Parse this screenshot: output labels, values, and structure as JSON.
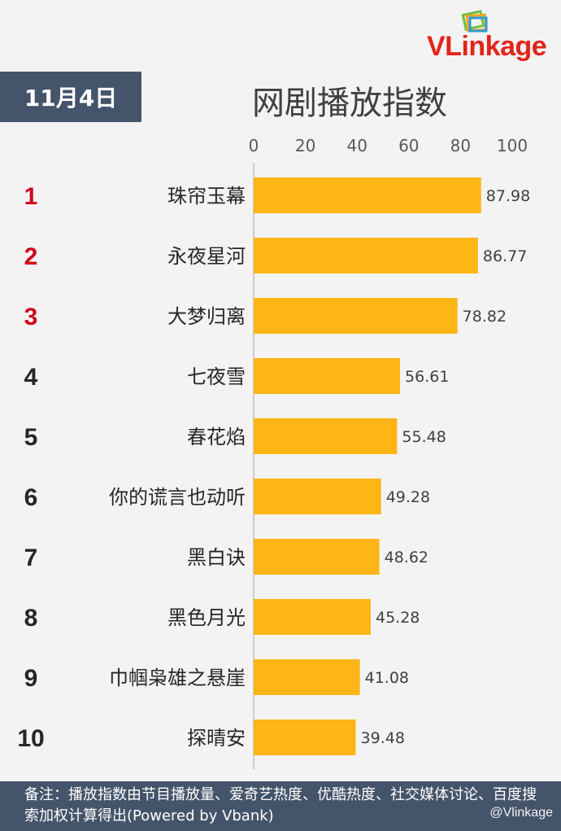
{
  "date_label": "11月4日",
  "watermark": "@Vlinkage",
  "logo": {
    "text": "VLinkage",
    "colors": [
      "#e3241b",
      "#f5a623",
      "#2e9bd6",
      "#6fbf44"
    ]
  },
  "note": "备注：播放指数由节目播放量、爱奇艺热度、优酷热度、社交媒体讨论、百度搜索加权计算得出(Powered by Vbank)",
  "chart_data": {
    "type": "bar",
    "orientation": "horizontal",
    "title": "网剧播放指数",
    "xlim": [
      0,
      100
    ],
    "ticks": [
      "0",
      "20",
      "40",
      "60",
      "80",
      "100"
    ],
    "bar_color": "#ffb515",
    "rank_colors": {
      "top3": "#d0021b",
      "rest": "#262626"
    },
    "ranks": [
      "1",
      "2",
      "3",
      "4",
      "5",
      "6",
      "7",
      "8",
      "9",
      "10"
    ],
    "categories": [
      "珠帘玉幕",
      "永夜星河",
      "大梦归离",
      "七夜雪",
      "春花焰",
      "你的谎言也动听",
      "黑白诀",
      "黑色月光",
      "巾帼枭雄之悬崖",
      "探晴安"
    ],
    "values": [
      87.98,
      86.77,
      78.82,
      56.61,
      55.48,
      49.28,
      48.62,
      45.28,
      41.08,
      39.48
    ],
    "value_labels": [
      "87.98",
      "86.77",
      "78.82",
      "56.61",
      "55.48",
      "49.28",
      "48.62",
      "45.28",
      "41.08",
      "39.48"
    ]
  }
}
